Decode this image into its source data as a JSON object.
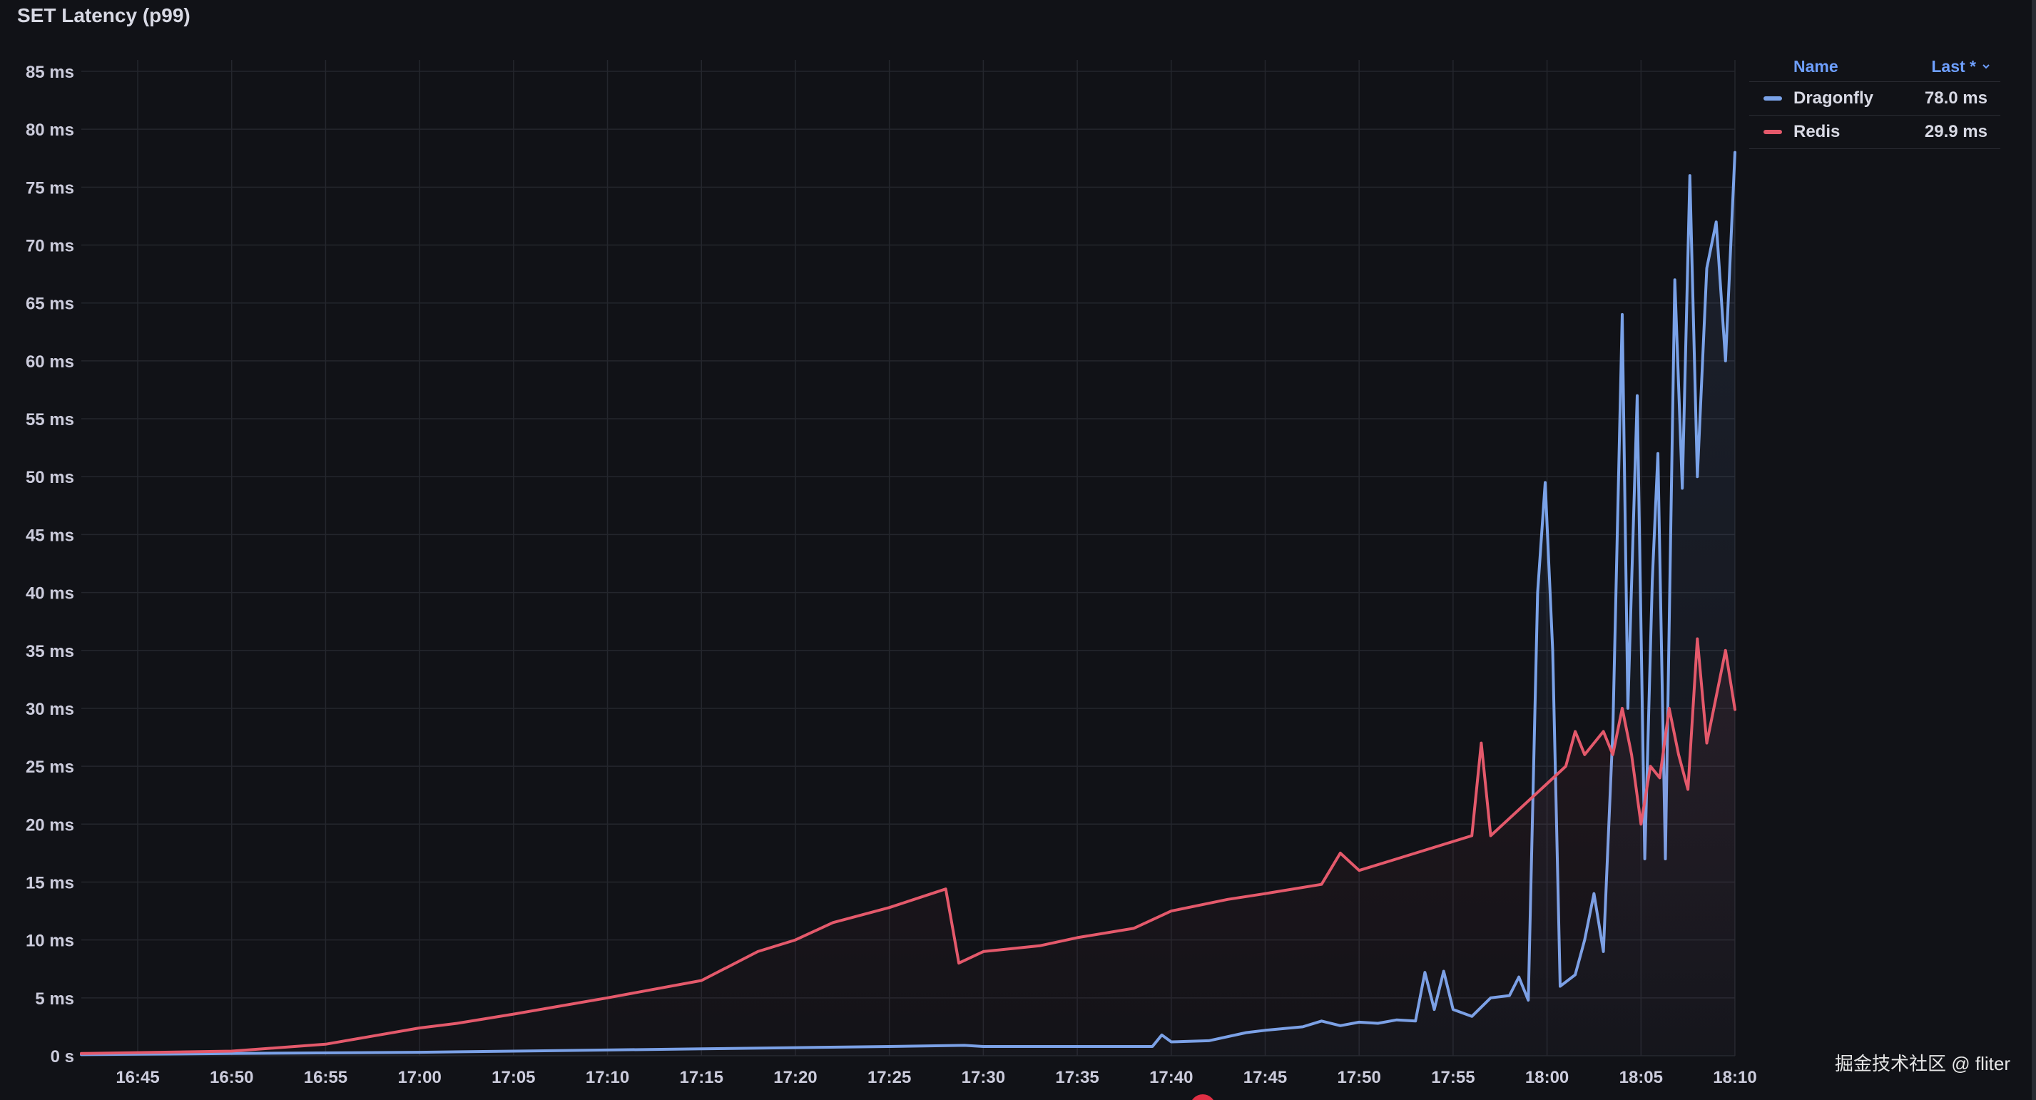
{
  "panel": {
    "title": "SET Latency (p99)"
  },
  "legend": {
    "name_header": "Name",
    "last_header": "Last *",
    "sort_icon": "chevron-down-icon",
    "items": [
      {
        "name": "Dragonfly",
        "last": "78.0 ms",
        "color": "#7aa2e8"
      },
      {
        "name": "Redis",
        "last": "29.9 ms",
        "color": "#e4596b"
      }
    ]
  },
  "watermark": "掘金技术社区 @ fliter",
  "colors": {
    "background": "#111217",
    "grid": "#24262d",
    "dragonfly": "#7aa2e8",
    "redis": "#e4596b"
  },
  "chart_data": {
    "type": "line",
    "title": "SET Latency (p99)",
    "unit": "ms",
    "ylim": [
      0,
      85
    ],
    "y_ticks": [
      0,
      5,
      10,
      15,
      20,
      25,
      30,
      35,
      40,
      45,
      50,
      55,
      60,
      65,
      70,
      75,
      80,
      85
    ],
    "y_tick_labels": [
      "0 s",
      "5 ms",
      "10 ms",
      "15 ms",
      "20 ms",
      "25 ms",
      "30 ms",
      "35 ms",
      "40 ms",
      "45 ms",
      "50 ms",
      "55 ms",
      "60 ms",
      "65 ms",
      "70 ms",
      "75 ms",
      "80 ms",
      "85 ms"
    ],
    "xlim": [
      "16:42",
      "18:10"
    ],
    "x_ticks": [
      "16:45",
      "16:50",
      "16:55",
      "17:00",
      "17:05",
      "17:10",
      "17:15",
      "17:20",
      "17:25",
      "17:30",
      "17:35",
      "17:40",
      "17:45",
      "17:50",
      "17:55",
      "18:00",
      "18:05",
      "18:10"
    ],
    "grid": true,
    "legend_position": "top-right",
    "series": [
      {
        "name": "Dragonfly",
        "color": "#7aa2e8",
        "points": [
          [
            "16:42",
            0.1
          ],
          [
            "16:50",
            0.2
          ],
          [
            "17:00",
            0.3
          ],
          [
            "17:05",
            0.4
          ],
          [
            "17:10",
            0.5
          ],
          [
            "17:15",
            0.6
          ],
          [
            "17:20",
            0.7
          ],
          [
            "17:25",
            0.8
          ],
          [
            "17:29",
            0.9
          ],
          [
            "17:30",
            0.8
          ],
          [
            "17:35",
            0.8
          ],
          [
            "17:39",
            0.8
          ],
          [
            "17:39.5",
            1.8
          ],
          [
            "17:40",
            1.2
          ],
          [
            "17:42",
            1.3
          ],
          [
            "17:44",
            2.0
          ],
          [
            "17:45",
            2.2
          ],
          [
            "17:47",
            2.5
          ],
          [
            "17:48",
            3.0
          ],
          [
            "17:49",
            2.6
          ],
          [
            "17:50",
            2.9
          ],
          [
            "17:51",
            2.8
          ],
          [
            "17:52",
            3.1
          ],
          [
            "17:53",
            3.0
          ],
          [
            "17:53.5",
            7.2
          ],
          [
            "17:54",
            4.0
          ],
          [
            "17:54.5",
            7.3
          ],
          [
            "17:55",
            4.0
          ],
          [
            "17:56",
            3.4
          ],
          [
            "17:57",
            5.0
          ],
          [
            "17:58",
            5.2
          ],
          [
            "17:58.5",
            6.8
          ],
          [
            "17:59",
            4.8
          ],
          [
            "17:59.5",
            40.0
          ],
          [
            "17:59.9",
            49.5
          ],
          [
            "18:00.3",
            35.0
          ],
          [
            "18:00.7",
            6.0
          ],
          [
            "18:01.5",
            7.0
          ],
          [
            "18:02",
            10.0
          ],
          [
            "18:02.5",
            14.0
          ],
          [
            "18:03",
            9.0
          ],
          [
            "18:03.5",
            28.0
          ],
          [
            "18:04",
            64.0
          ],
          [
            "18:04.3",
            30.0
          ],
          [
            "18:04.8",
            57.0
          ],
          [
            "18:05.2",
            17.0
          ],
          [
            "18:05.6",
            41.0
          ],
          [
            "18:05.9",
            52.0
          ],
          [
            "18:06.3",
            17.0
          ],
          [
            "18:06.8",
            67.0
          ],
          [
            "18:07.2",
            49.0
          ],
          [
            "18:07.6",
            76.0
          ],
          [
            "18:08",
            50.0
          ],
          [
            "18:08.5",
            68.0
          ],
          [
            "18:09",
            72.0
          ],
          [
            "18:09.5",
            60.0
          ],
          [
            "18:10",
            78.0
          ]
        ]
      },
      {
        "name": "Redis",
        "color": "#e4596b",
        "points": [
          [
            "16:42",
            0.2
          ],
          [
            "16:50",
            0.4
          ],
          [
            "16:55",
            1.0
          ],
          [
            "17:00",
            2.4
          ],
          [
            "17:02",
            2.8
          ],
          [
            "17:05",
            3.6
          ],
          [
            "17:10",
            5.0
          ],
          [
            "17:15",
            6.5
          ],
          [
            "17:18",
            9.0
          ],
          [
            "17:20",
            10.0
          ],
          [
            "17:22",
            11.5
          ],
          [
            "17:25",
            12.8
          ],
          [
            "17:28",
            14.4
          ],
          [
            "17:28.7",
            8.0
          ],
          [
            "17:30",
            9.0
          ],
          [
            "17:33",
            9.5
          ],
          [
            "17:35",
            10.2
          ],
          [
            "17:38",
            11.0
          ],
          [
            "17:40",
            12.5
          ],
          [
            "17:43",
            13.5
          ],
          [
            "17:45",
            14.0
          ],
          [
            "17:48",
            14.8
          ],
          [
            "17:49",
            17.5
          ],
          [
            "17:50",
            16.0
          ],
          [
            "17:52",
            17.0
          ],
          [
            "17:55",
            18.5
          ],
          [
            "17:56",
            19.0
          ],
          [
            "17:56.5",
            27.0
          ],
          [
            "17:57",
            19.0
          ],
          [
            "17:58",
            20.5
          ],
          [
            "18:00",
            23.5
          ],
          [
            "18:01",
            25.0
          ],
          [
            "18:01.5",
            28.0
          ],
          [
            "18:02",
            26.0
          ],
          [
            "18:03",
            28.0
          ],
          [
            "18:03.5",
            26.0
          ],
          [
            "18:04",
            30.0
          ],
          [
            "18:04.5",
            26.0
          ],
          [
            "18:05",
            20.0
          ],
          [
            "18:05.5",
            25.0
          ],
          [
            "18:06",
            24.0
          ],
          [
            "18:06.5",
            30.0
          ],
          [
            "18:07",
            26.0
          ],
          [
            "18:07.5",
            23.0
          ],
          [
            "18:08",
            36.0
          ],
          [
            "18:08.5",
            27.0
          ],
          [
            "18:09",
            31.0
          ],
          [
            "18:09.5",
            35.0
          ],
          [
            "18:10",
            29.9
          ]
        ]
      }
    ]
  }
}
